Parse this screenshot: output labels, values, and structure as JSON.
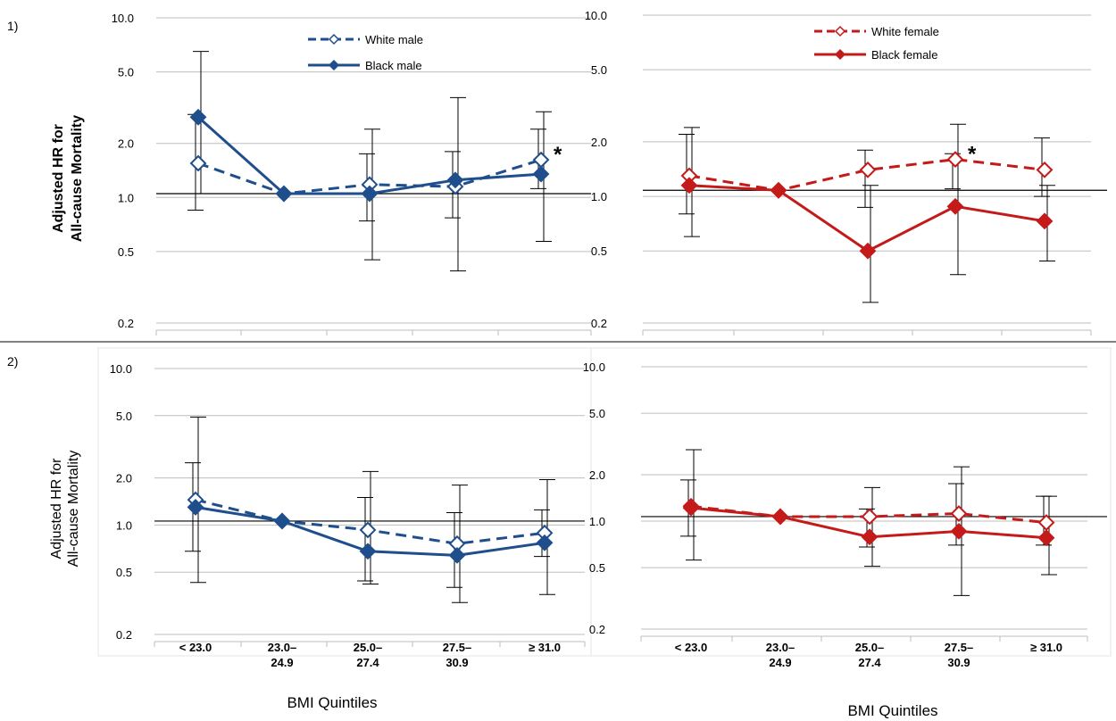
{
  "figure": {
    "panel_labels": [
      "1)",
      "2)"
    ],
    "ylabel_lines": [
      "Adjusted HR for",
      "All-cause Mortality"
    ],
    "xlabel": "BMI Quintiles",
    "categories": [
      [
        "< 23.0"
      ],
      [
        "23.0–",
        "24.9"
      ],
      [
        "25.0–",
        "27.4"
      ],
      [
        "27.5–",
        "30.9"
      ],
      [
        "≥ 31.0"
      ]
    ]
  },
  "chart_data": [
    {
      "type": "line",
      "scale": "log",
      "yticks": [
        "10.0",
        "5.0",
        "2.0",
        "1.0",
        "0.5",
        "0.2"
      ],
      "ytick_values": [
        10,
        5,
        2,
        1,
        0.5,
        0.2
      ],
      "ylim": [
        0.2,
        10
      ],
      "reference_line": 1.05,
      "legend": "top-center",
      "significance_marker": {
        "text": "*",
        "category_index": 4
      },
      "series": [
        {
          "name": "White male",
          "color": "#1f4e8c",
          "style": "dashed",
          "marker": "open-diamond",
          "values": [
            1.55,
            1.05,
            1.18,
            1.15,
            1.62
          ],
          "ci": [
            [
              0.85,
              2.9
            ],
            [
              1.05,
              1.05
            ],
            [
              0.74,
              1.75
            ],
            [
              0.77,
              1.8
            ],
            [
              1.12,
              2.4
            ]
          ]
        },
        {
          "name": "Black male",
          "color": "#1f4e8c",
          "style": "solid",
          "marker": "filled-diamond",
          "values": [
            2.8,
            1.05,
            1.05,
            1.25,
            1.35
          ],
          "ci": [
            [
              1.05,
              6.5
            ],
            [
              1.05,
              1.05
            ],
            [
              0.45,
              2.4
            ],
            [
              0.39,
              3.6
            ],
            [
              0.57,
              3.0
            ]
          ]
        }
      ]
    },
    {
      "type": "line",
      "scale": "log",
      "yticks": [
        "10.0",
        "5.0",
        "2.0",
        "1.0",
        "0.5",
        "0.2"
      ],
      "ytick_values": [
        10,
        5,
        2,
        1,
        0.5,
        0.2
      ],
      "ylim": [
        0.2,
        10
      ],
      "reference_line": 1.08,
      "legend": "top-right",
      "significance_marker": {
        "text": "*",
        "category_index": 3
      },
      "series": [
        {
          "name": "White female",
          "color": "#c41a1a",
          "style": "dashed",
          "marker": "open-diamond",
          "values": [
            1.3,
            1.08,
            1.4,
            1.6,
            1.4
          ],
          "ci": [
            [
              0.8,
              2.2
            ],
            [
              1.08,
              1.08
            ],
            [
              0.87,
              1.8
            ],
            [
              1.1,
              1.72
            ],
            [
              1.0,
              2.1
            ]
          ]
        },
        {
          "name": "Black female",
          "color": "#c41a1a",
          "style": "solid",
          "marker": "filled-diamond",
          "values": [
            1.15,
            1.08,
            0.5,
            0.88,
            0.73
          ],
          "ci": [
            [
              0.6,
              2.4
            ],
            [
              1.08,
              1.08
            ],
            [
              0.26,
              1.15
            ],
            [
              0.37,
              2.5
            ],
            [
              0.44,
              1.15
            ]
          ]
        }
      ]
    },
    {
      "type": "line",
      "scale": "log",
      "yticks": [
        "10.0",
        "5.0",
        "2.0",
        "1.0",
        "0.5",
        "0.2"
      ],
      "ytick_values": [
        10,
        5,
        2,
        1,
        0.5,
        0.2
      ],
      "ylim": [
        0.2,
        10
      ],
      "reference_line": 1.06,
      "series": [
        {
          "name": "White male",
          "color": "#1f4e8c",
          "style": "dashed",
          "marker": "open-diamond",
          "values": [
            1.45,
            1.06,
            0.93,
            0.76,
            0.89
          ],
          "ci": [
            [
              0.68,
              2.5
            ],
            [
              1.06,
              1.06
            ],
            [
              0.44,
              1.5
            ],
            [
              0.4,
              1.2
            ],
            [
              0.63,
              1.25
            ]
          ]
        },
        {
          "name": "Black male",
          "color": "#1f4e8c",
          "style": "solid",
          "marker": "filled-diamond",
          "values": [
            1.3,
            1.06,
            0.68,
            0.64,
            0.77
          ],
          "ci": [
            [
              0.43,
              4.9
            ],
            [
              1.06,
              1.06
            ],
            [
              0.42,
              2.2
            ],
            [
              0.32,
              1.8
            ],
            [
              0.36,
              1.95
            ]
          ]
        }
      ]
    },
    {
      "type": "line",
      "scale": "log",
      "yticks": [
        "10.0",
        "5.0",
        "2.0",
        "1.0",
        "0.5",
        "0.2"
      ],
      "ytick_values": [
        10,
        5,
        2,
        1,
        0.5,
        0.2
      ],
      "ylim": [
        0.2,
        10
      ],
      "reference_line": 1.07,
      "series": [
        {
          "name": "White female",
          "color": "#c41a1a",
          "style": "dashed",
          "marker": "open-diamond",
          "values": [
            1.25,
            1.07,
            1.07,
            1.12,
            0.98
          ],
          "ci": [
            [
              0.8,
              1.85
            ],
            [
              1.07,
              1.07
            ],
            [
              0.68,
              1.2
            ],
            [
              0.7,
              1.75
            ],
            [
              0.7,
              1.45
            ]
          ]
        },
        {
          "name": "Black female",
          "color": "#c41a1a",
          "style": "solid",
          "marker": "filled-diamond",
          "values": [
            1.22,
            1.07,
            0.79,
            0.86,
            0.78
          ],
          "ci": [
            [
              0.56,
              2.9
            ],
            [
              1.07,
              1.07
            ],
            [
              0.51,
              1.65
            ],
            [
              0.33,
              2.25
            ],
            [
              0.45,
              1.45
            ]
          ]
        }
      ]
    }
  ]
}
